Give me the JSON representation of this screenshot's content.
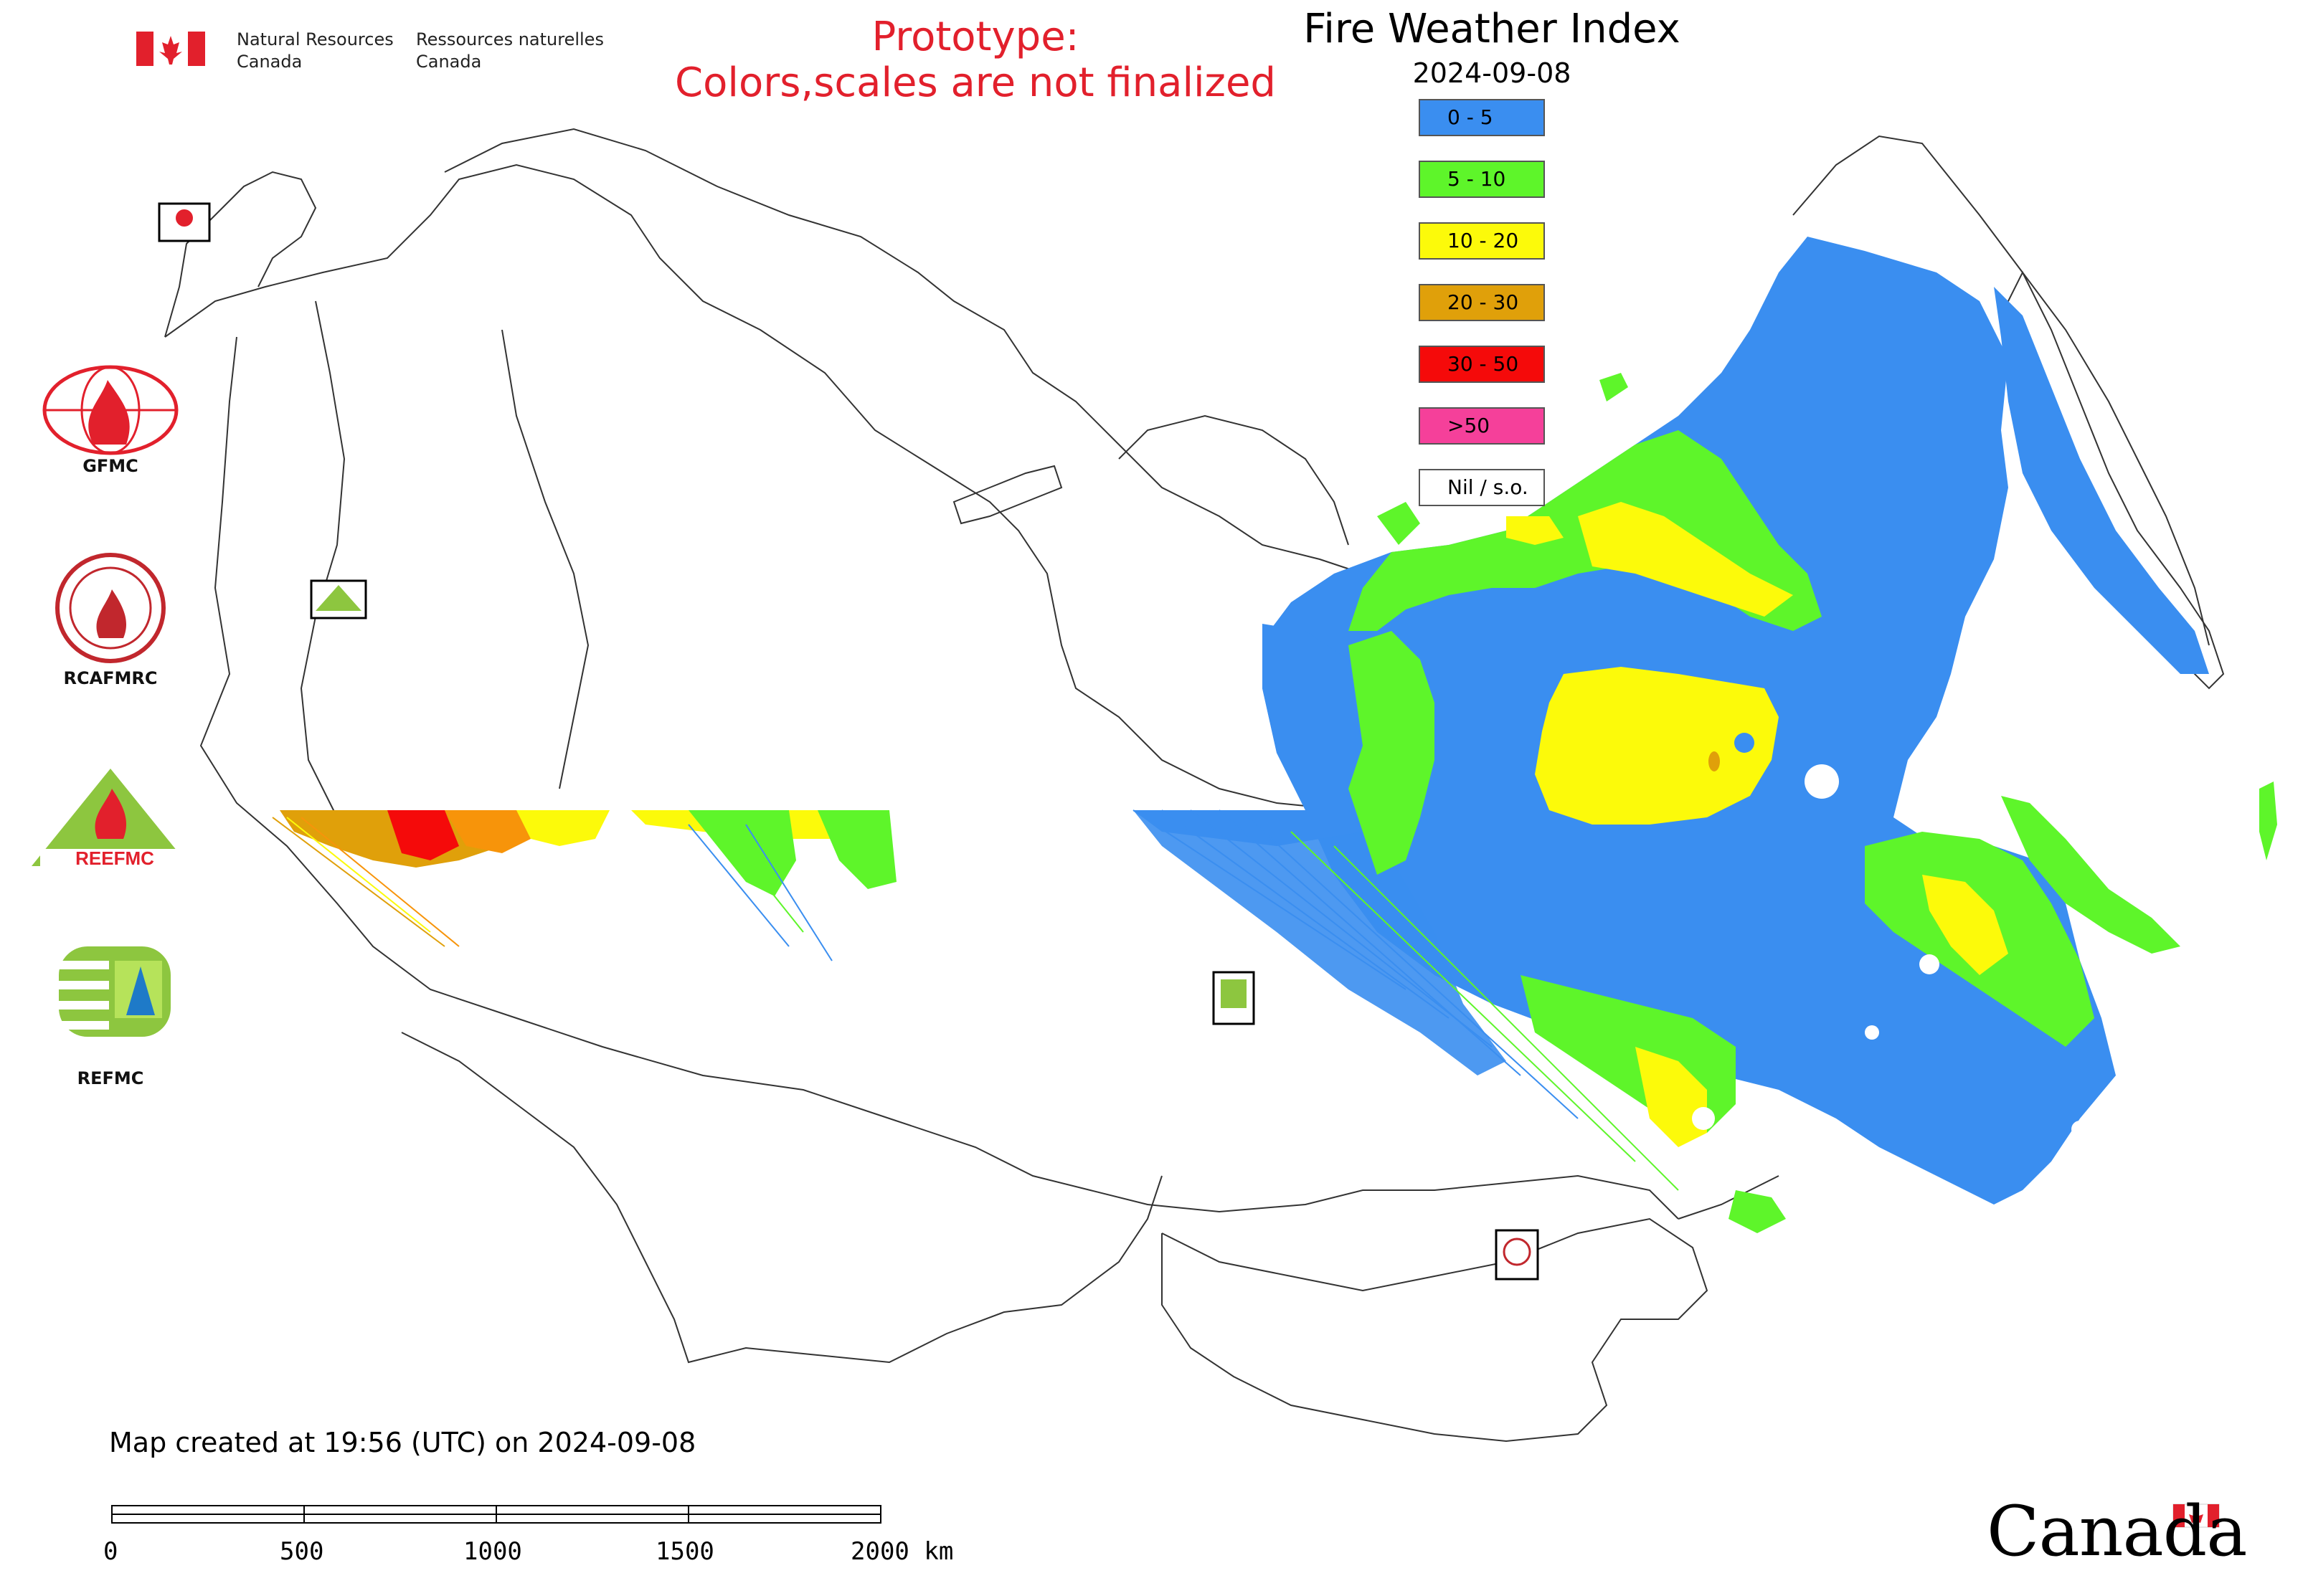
{
  "header": {
    "nrcan_en_line1": "Natural Resources",
    "nrcan_en_line2": "Canada",
    "nrcan_fr_line1": "Ressources naturelles",
    "nrcan_fr_line2": "Canada",
    "prototype_line1": "Prototype:",
    "prototype_line2": "Colors,scales are not finalized"
  },
  "map": {
    "title": "Fire Weather Index",
    "date": "2024-09-08",
    "legend": [
      {
        "label": "0 - 5",
        "color": "#3a8ef0"
      },
      {
        "label": "5 - 10",
        "color": "#5ef52a"
      },
      {
        "label": "10 - 20",
        "color": "#fcfa0a"
      },
      {
        "label": "20 - 30",
        "color": "#e0a00a"
      },
      {
        "label": "30 - 50",
        "color": "#f50a0a"
      },
      {
        "label": ">50",
        "color": "#f5409a"
      },
      {
        "label": "Nil / s.o.",
        "color": "#ffffff"
      }
    ],
    "created_text": "Map created at 19:56 (UTC) on 2024-09-08",
    "scale_labels": [
      "0",
      "500",
      "1000",
      "1500",
      "2000 km"
    ]
  },
  "logos": {
    "gfmc": "GFMC",
    "rcafmrc": "RCAFMRC",
    "reefmc": "REEFMC",
    "refmc": "REFMC"
  },
  "footer": {
    "canada_wordmark": "Canada"
  },
  "colors": {
    "class_0_5": "#3a8ef0",
    "class_5_10": "#5ef52a",
    "class_10_20": "#fcfa0a",
    "class_20_30": "#e0a00a",
    "class_30_50": "#f50a0a",
    "prototype_red": "#e2202c",
    "flag_red": "#e2202c"
  }
}
